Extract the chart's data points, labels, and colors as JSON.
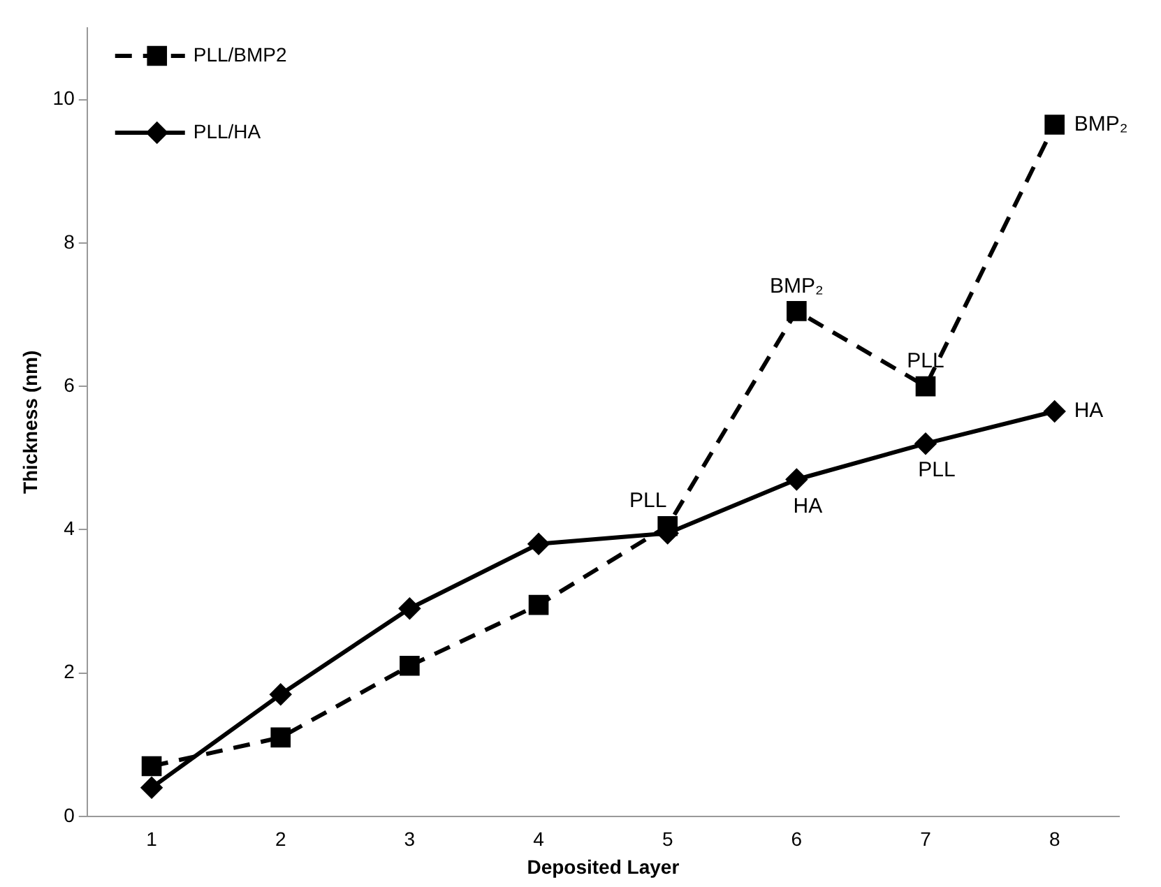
{
  "chart_data": {
    "type": "line",
    "xlabel": "Deposited Layer",
    "ylabel": "Thickness (nm)",
    "categories": [
      "1",
      "2",
      "3",
      "4",
      "5",
      "6",
      "7",
      "8"
    ],
    "series": [
      {
        "name": "PLL/BMP2",
        "color": "#000000",
        "values": [
          0.7,
          1.1,
          2.1,
          2.95,
          4.05,
          7.05,
          6.0,
          9.65
        ],
        "marker": "square",
        "line_style": "dashed"
      },
      {
        "name": "PLL/HA",
        "color": "#000000",
        "values": [
          0.4,
          1.7,
          2.9,
          3.8,
          3.95,
          4.7,
          5.2,
          5.65
        ],
        "marker": "diamond",
        "line_style": "solid"
      }
    ],
    "ylim": [
      0,
      11
    ],
    "yticks": [
      0,
      2,
      4,
      6,
      8,
      10
    ],
    "grid": false,
    "legend": "top left",
    "annotations": [
      {
        "text": "PLL",
        "x": "5",
        "y": 4.05
      },
      {
        "text": "BMP₂",
        "x": "6",
        "y": 7.05
      },
      {
        "text": "PLL",
        "x": "7",
        "y": 6.0
      },
      {
        "text": "BMP₂",
        "x": "8",
        "y": 9.65
      },
      {
        "text": "HA",
        "x": "6",
        "y": 4.7
      },
      {
        "text": "PLL",
        "x": "7",
        "y": 5.2
      },
      {
        "text": "HA",
        "x": "8",
        "y": 5.65
      }
    ]
  }
}
